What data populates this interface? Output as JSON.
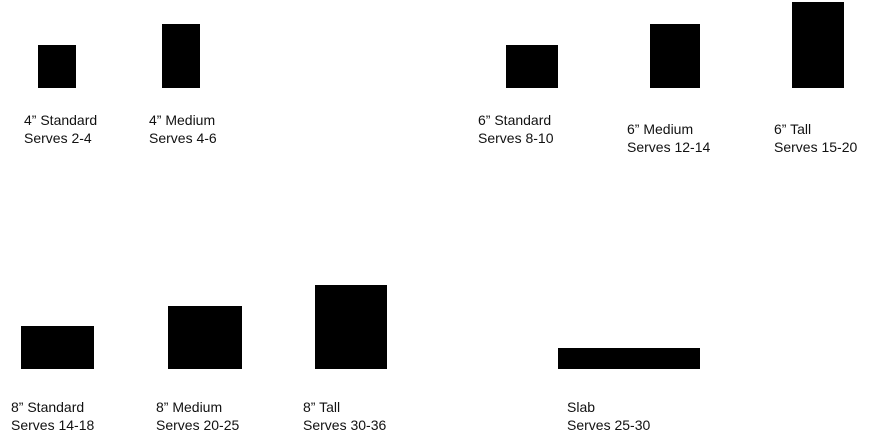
{
  "items": [
    {
      "name": "4” Standard",
      "serves": "Serves 2-4"
    },
    {
      "name": "4” Medium",
      "serves": "Serves 4-6"
    },
    {
      "name": "6” Standard",
      "serves": "Serves 8-10"
    },
    {
      "name": "6” Medium",
      "serves": "Serves 12-14"
    },
    {
      "name": "6” Tall",
      "serves": "Serves 15-20"
    },
    {
      "name": "8” Standard",
      "serves": "Serves 14-18"
    },
    {
      "name": "8” Medium",
      "serves": "Serves 20-25"
    },
    {
      "name": "8” Tall",
      "serves": "Serves 30-36"
    },
    {
      "name": "Slab",
      "serves": "Serves 25-30"
    }
  ],
  "colors": {
    "shape": "#000000",
    "text": "#111111",
    "background": "#ffffff"
  }
}
